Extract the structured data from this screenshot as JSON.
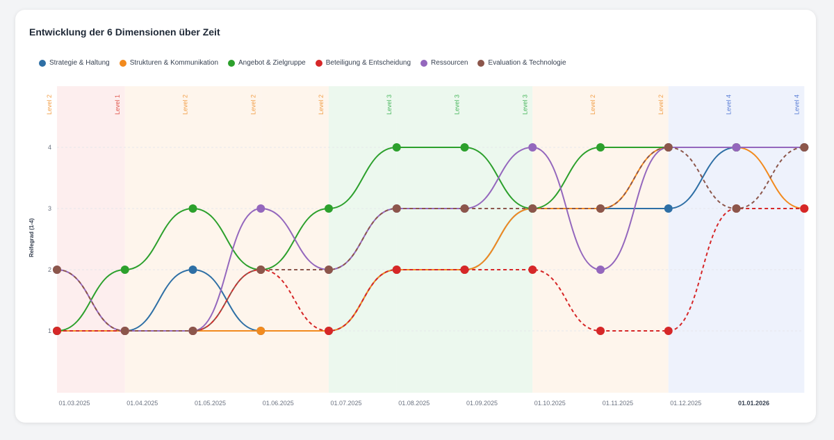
{
  "chart_data": {
    "type": "line",
    "title": "Entwicklung der 6 Dimensionen über Zeit",
    "ylabel": "Reifegrad (1-4)",
    "ylim": [
      0,
      5
    ],
    "yticks": [
      1,
      2,
      3,
      4
    ],
    "x": [
      "2025-03",
      "2025-04",
      "2025-05",
      "2025-06",
      "2025-07",
      "2025-08",
      "2025-09",
      "2025-10",
      "2025-11",
      "2025-12",
      "2026-01",
      "2026-02"
    ],
    "xticks": [
      "01.03.2025",
      "01.04.2025",
      "01.05.2025",
      "01.06.2025",
      "01.07.2025",
      "01.08.2025",
      "01.09.2025",
      "01.10.2025",
      "01.11.2025",
      "01.12.2025",
      "01.01.2026"
    ],
    "xtick_bold": "01.01.2026",
    "series": [
      {
        "name": "Strategie & Haltung",
        "color": "#2e6fa5",
        "dashed": false,
        "values": [
          1,
          1,
          2,
          1,
          1,
          2,
          2,
          3,
          3,
          3,
          4,
          4
        ]
      },
      {
        "name": "Strukturen & Kommunikation",
        "color": "#f28a1e",
        "dashed": false,
        "values": [
          1,
          1,
          1,
          1,
          1,
          2,
          2,
          3,
          3,
          4,
          4,
          3
        ]
      },
      {
        "name": "Angebot & Zielgruppe",
        "color": "#2ca02c",
        "dashed": false,
        "values": [
          1,
          2,
          3,
          2,
          3,
          4,
          4,
          3,
          4,
          4,
          4,
          4
        ]
      },
      {
        "name": "Beteiligung & Entscheidung",
        "color": "#d62728",
        "dashed": true,
        "values": [
          1,
          1,
          1,
          2,
          1,
          2,
          2,
          2,
          1,
          1,
          3,
          3
        ]
      },
      {
        "name": "Ressourcen",
        "color": "#9467bd",
        "dashed": false,
        "values": [
          2,
          1,
          1,
          3,
          2,
          3,
          3,
          4,
          2,
          4,
          4,
          4
        ]
      },
      {
        "name": "Evaluation & Technologie",
        "color": "#8c564b",
        "dashed": true,
        "values": [
          2,
          1,
          1,
          2,
          2,
          3,
          3,
          3,
          3,
          4,
          3,
          4
        ]
      }
    ],
    "level_bands": [
      {
        "label": "Level 2",
        "color": "#f2a04a"
      },
      {
        "label": "Level 1",
        "color": "#e0584f"
      },
      {
        "label": "Level 2",
        "color": "#f2a04a"
      },
      {
        "label": "Level 2",
        "color": "#f2a04a"
      },
      {
        "label": "Level 2",
        "color": "#f2a04a"
      },
      {
        "label": "Level 3",
        "color": "#4cb860"
      },
      {
        "label": "Level 3",
        "color": "#4cb860"
      },
      {
        "label": "Level 3",
        "color": "#4cb860"
      },
      {
        "label": "Level 2",
        "color": "#f2a04a"
      },
      {
        "label": "Level 2",
        "color": "#f2a04a"
      },
      {
        "label": "Level 4",
        "color": "#5b7fd6"
      },
      {
        "label": "Level 4",
        "color": "#5b7fd6"
      }
    ],
    "band_fills": {
      "Level 1": "#fdeeee",
      "Level 2": "#fef5ec",
      "Level 3": "#ecf8ee",
      "Level 4": "#eef2fc"
    }
  }
}
